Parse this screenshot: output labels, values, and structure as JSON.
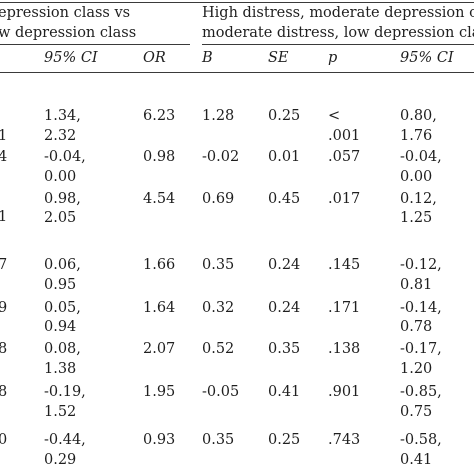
{
  "headers": {
    "group1_line1": "epression class vs",
    "group1_line2": "w depression class",
    "group2_line1": "High distress, moderate depression cla",
    "group2_line2": "moderate distress, low depression class",
    "cols": [
      "95% CI",
      "OR",
      "B",
      "SE",
      "p",
      "95% CI"
    ]
  },
  "rows": [
    {
      "lead": "",
      "ci1": [
        "1.34,",
        "2.32"
      ],
      "or": "6.23",
      "b": "1.28",
      "se": "0.25",
      "p": [
        "<",
        ".001"
      ],
      "ci2": [
        "0.80,",
        "1.76"
      ],
      "lead2": "1"
    },
    {
      "lead": "4",
      "ci1": [
        "-0.04,",
        "0.00"
      ],
      "or": "0.98",
      "b": "-0.02",
      "se": "0.01",
      "p": [
        ".057"
      ],
      "ci2": [
        "-0.04,",
        "0.00"
      ]
    },
    {
      "lead": "1",
      "ci1": [
        "0.98,",
        "2.05"
      ],
      "or": "4.54",
      "b": "0.69",
      "se": "0.45",
      "p": [
        ".017"
      ],
      "ci2": [
        "0.12,",
        "1.25"
      ]
    },
    {
      "lead": "7",
      "ci1": [
        "0.06,",
        "0.95"
      ],
      "or": "1.66",
      "b": "0.35",
      "se": "0.24",
      "p": [
        ".145"
      ],
      "ci2": [
        "-0.12,",
        "0.81"
      ]
    },
    {
      "lead": "9",
      "ci1": [
        "0.05,",
        "0.94"
      ],
      "or": "1.64",
      "b": "0.32",
      "se": "0.24",
      "p": [
        ".171"
      ],
      "ci2": [
        "-0.14,",
        "0.78"
      ]
    },
    {
      "lead": "8",
      "ci1": [
        "0.08,",
        "1.38"
      ],
      "or": "2.07",
      "b": "0.52",
      "se": "0.35",
      "p": [
        ".138"
      ],
      "ci2": [
        "-0.17,",
        "1.20"
      ]
    },
    {
      "lead": "8",
      "ci1": [
        "-0.19,",
        "1.52"
      ],
      "or": "1.95",
      "b": "-0.05",
      "se": "0.41",
      "p": [
        ".901"
      ],
      "ci2": [
        "-0.85,",
        "0.75"
      ]
    },
    {
      "lead": "0",
      "ci1": [
        "-0.44,",
        "0.29"
      ],
      "or": "0.93",
      "b": "0.35",
      "se": "0.25",
      "p": [
        ".743"
      ],
      "ci2": [
        "-0.58,",
        "0.41"
      ]
    }
  ]
}
